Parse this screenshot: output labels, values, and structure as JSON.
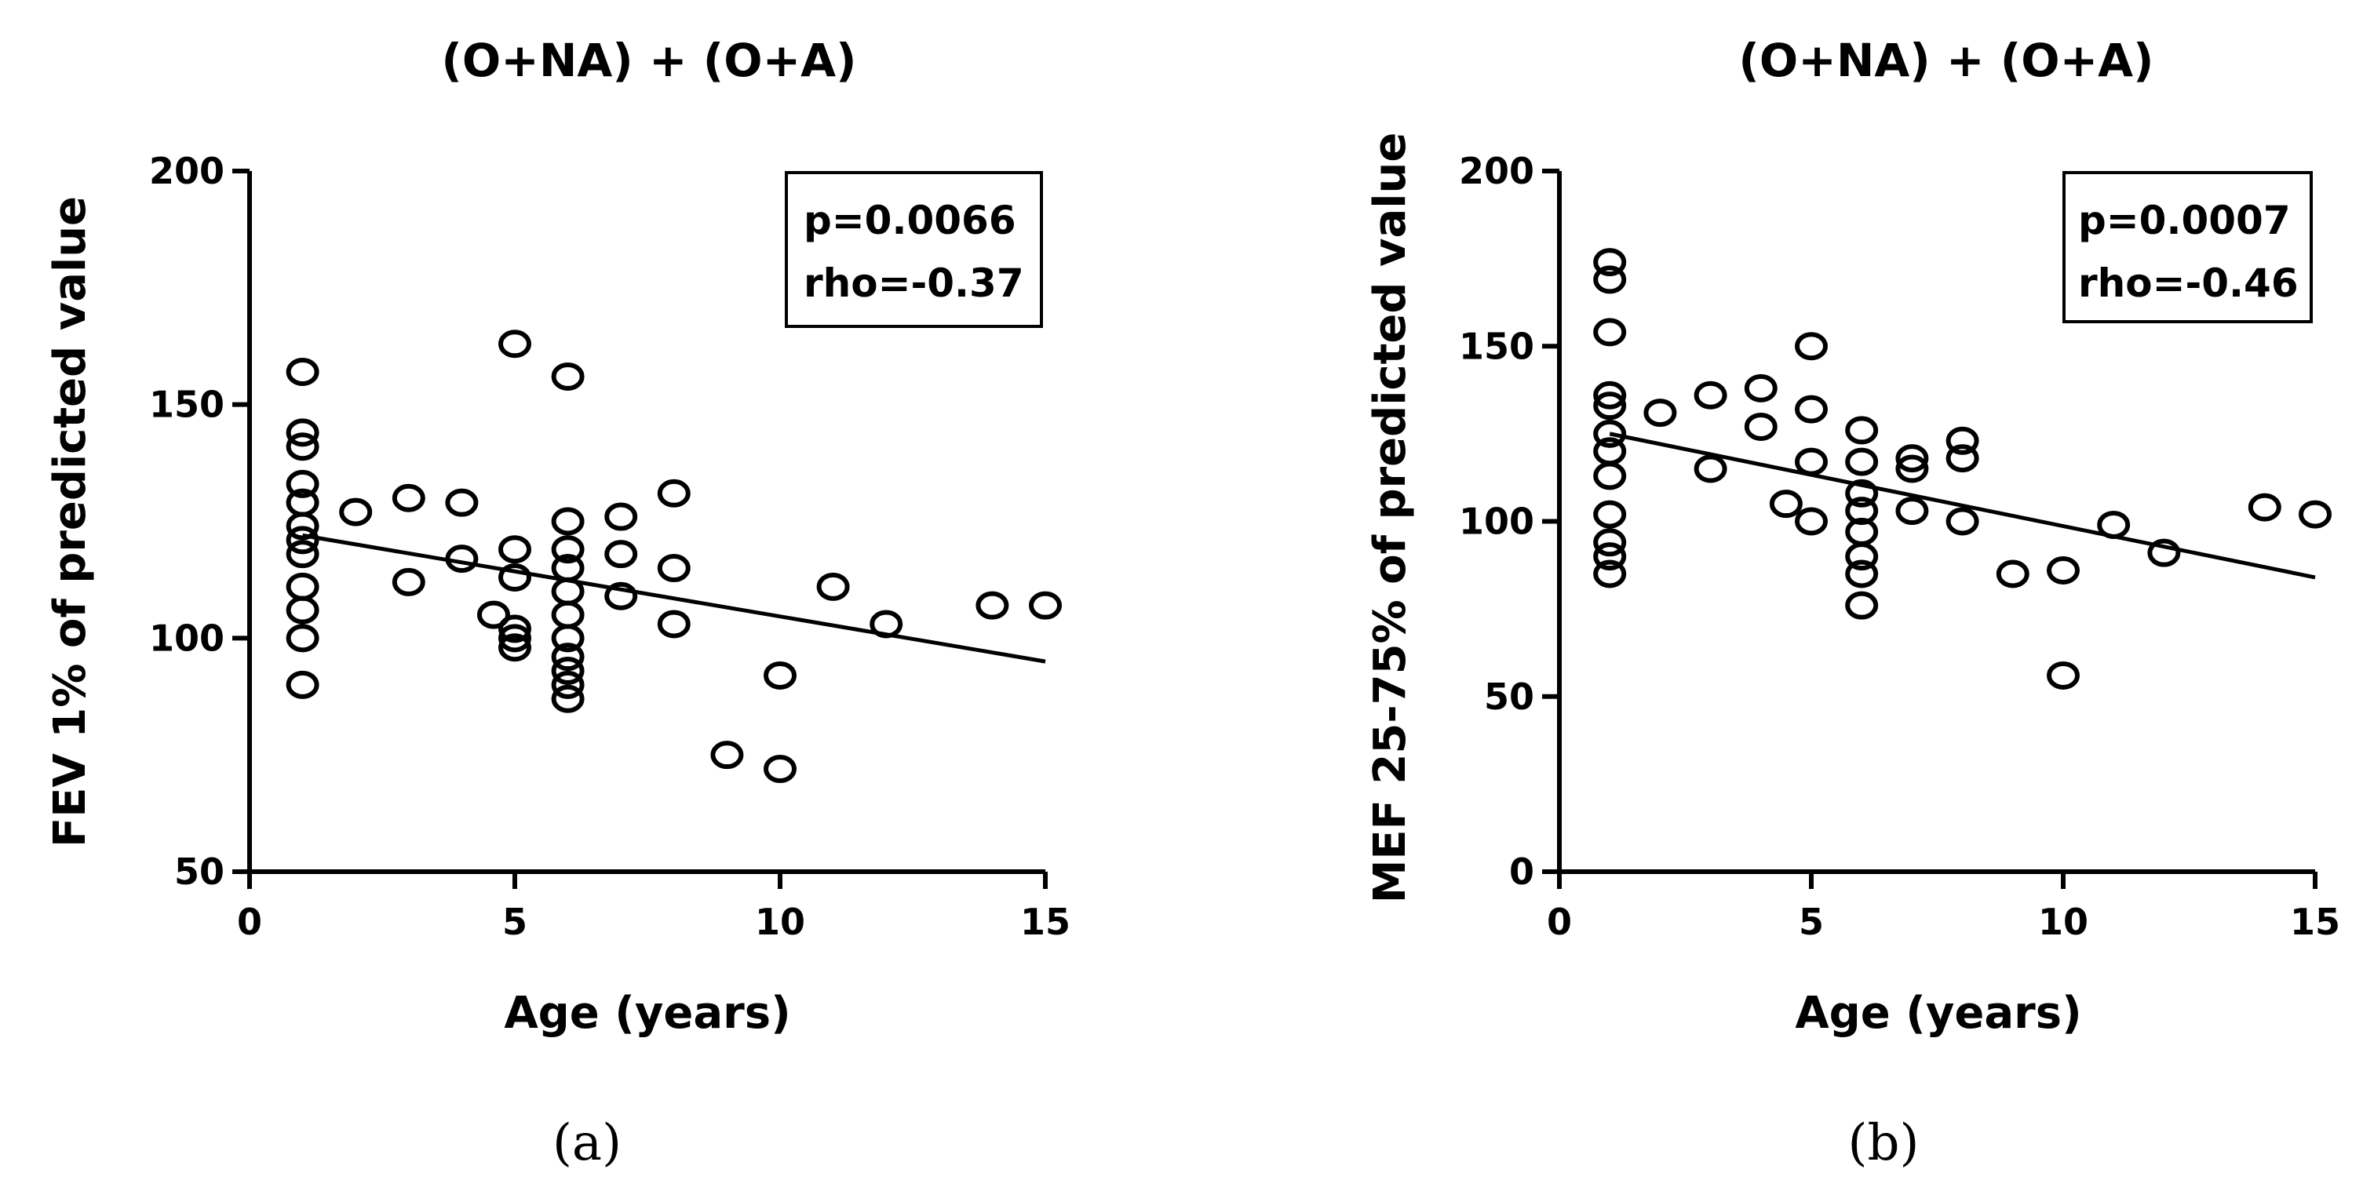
{
  "chart_data": [
    {
      "type": "scatter",
      "title": "(O+NA) + (O+A)",
      "xlabel": "Age (years)",
      "ylabel": "FEV 1% of predicted value",
      "xlim": [
        0,
        15
      ],
      "ylim": [
        50,
        200
      ],
      "xticks": [
        "0",
        "5",
        "10",
        "15"
      ],
      "yticks": [
        "50",
        "100",
        "150",
        "200"
      ],
      "stats": {
        "p": "p=0.0066",
        "rho": "rho=-0.37"
      },
      "panel_label": "(a)",
      "fit_line": {
        "x": [
          1,
          15
        ],
        "y": [
          122,
          95
        ]
      },
      "points": {
        "x": [
          1,
          1,
          1,
          1,
          1,
          1,
          1,
          1,
          1,
          1,
          1,
          1,
          2,
          3,
          3,
          4,
          4,
          4.6,
          5,
          5,
          5,
          5,
          5,
          5,
          6,
          6,
          6,
          6,
          6,
          6,
          6,
          6,
          6,
          6,
          6,
          7,
          7,
          7,
          8,
          8,
          8,
          9,
          10,
          10,
          11,
          12,
          14,
          15
        ],
        "y": [
          157,
          144,
          141,
          133,
          129,
          121,
          118,
          111,
          106,
          100,
          90,
          124,
          127,
          130,
          112,
          129,
          117,
          105,
          163,
          119,
          113,
          102,
          100,
          98,
          156,
          125,
          119,
          115,
          110,
          105,
          100,
          96,
          93,
          90,
          87,
          126,
          118,
          109,
          131,
          115,
          103,
          75,
          72,
          92,
          111,
          103,
          107,
          107
        ]
      }
    },
    {
      "type": "scatter",
      "title": "(O+NA) + (O+A)",
      "xlabel": "Age (years)",
      "ylabel": "MEF 25-75% of predicted value",
      "xlim": [
        0,
        15
      ],
      "ylim": [
        0,
        200
      ],
      "xticks": [
        "0",
        "5",
        "10",
        "15"
      ],
      "yticks": [
        "0",
        "50",
        "100",
        "150",
        "200"
      ],
      "stats": {
        "p": "p=0.0007",
        "rho": "rho=-0.46"
      },
      "panel_label": "(b)",
      "fit_line": {
        "x": [
          1,
          15
        ],
        "y": [
          125,
          84
        ]
      },
      "points": {
        "x": [
          1,
          1,
          1,
          1,
          1,
          1,
          1,
          1,
          1,
          1,
          1,
          1,
          2,
          3,
          3,
          4,
          4,
          4.5,
          5,
          5,
          5,
          5,
          6,
          6,
          6,
          6,
          6,
          6,
          6,
          6,
          7,
          7,
          7,
          8,
          8,
          8,
          9,
          10,
          10,
          11,
          12,
          14,
          15
        ],
        "y": [
          174,
          169,
          154,
          136,
          133,
          125,
          120,
          113,
          102,
          94,
          90,
          85,
          131,
          136,
          115,
          138,
          127,
          105,
          150,
          132,
          117,
          100,
          126,
          117,
          108,
          103,
          97,
          90,
          85,
          76,
          118,
          115,
          103,
          123,
          118,
          100,
          85,
          86,
          56,
          99,
          91,
          104,
          102
        ]
      }
    }
  ]
}
